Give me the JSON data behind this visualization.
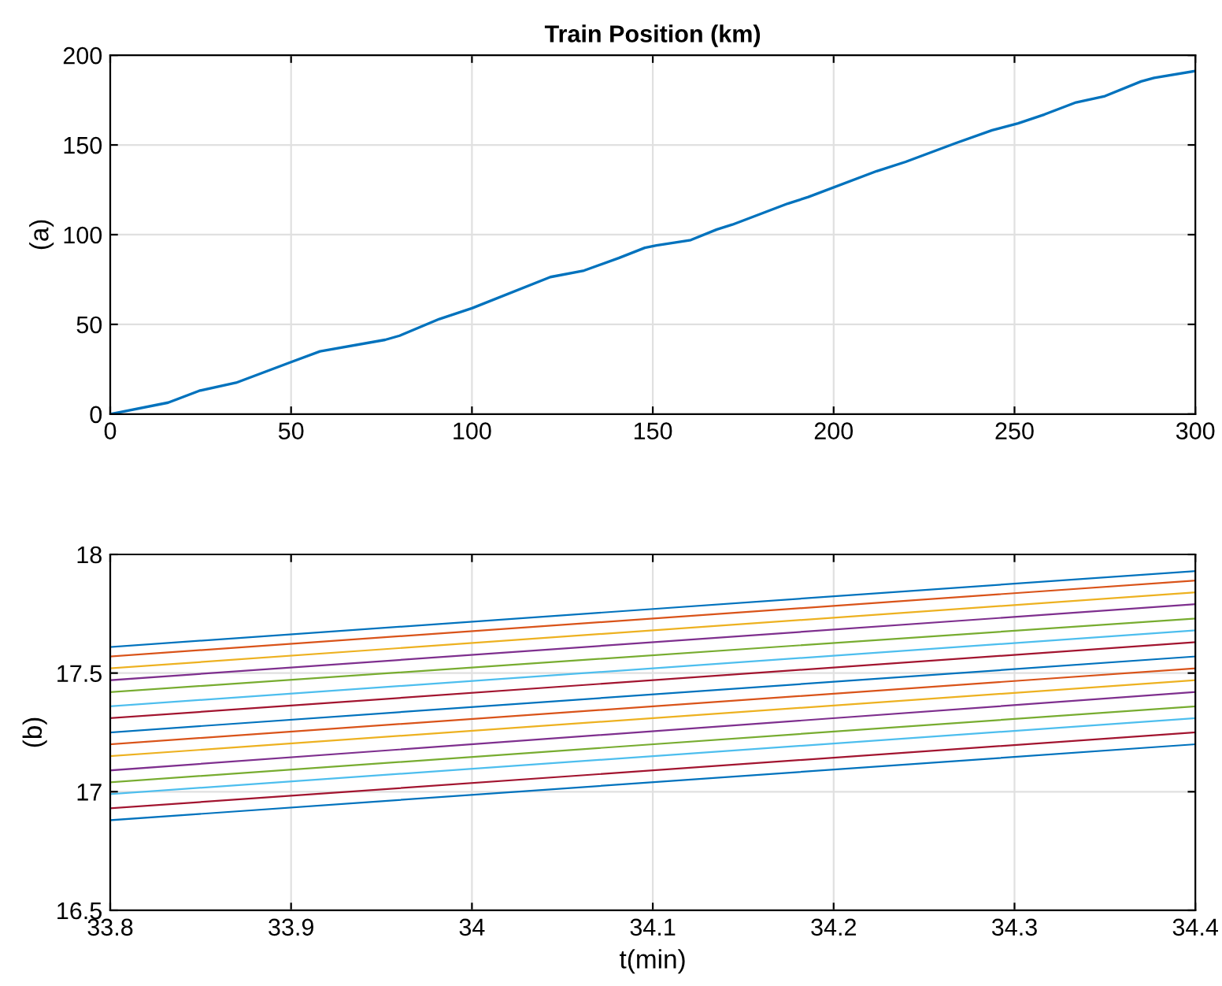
{
  "chart_data": [
    {
      "type": "line",
      "title": "Train Position (km)",
      "ylabel": "(a)",
      "xlim": [
        0,
        300
      ],
      "ylim": [
        0,
        200
      ],
      "xticks": [
        0,
        50,
        100,
        150,
        200,
        250,
        300
      ],
      "yticks": [
        0,
        50,
        100,
        150,
        200
      ],
      "grid": true,
      "series": [
        {
          "color": "#0072bd",
          "x": [
            0,
            16,
            24.6,
            34.8,
            50,
            58,
            76,
            80,
            91,
            100,
            121.7,
            131,
            140.6,
            147.8,
            151,
            160.5,
            167.7,
            172,
            187.3,
            193,
            211.9,
            219.9,
            233.6,
            243.8,
            251,
            258.3,
            267,
            275,
            285,
            288.6,
            300
          ],
          "values": [
            0,
            6.4,
            13,
            17.5,
            29,
            35,
            41.4,
            43.7,
            53,
            59,
            76.4,
            80,
            87,
            92.7,
            94,
            97,
            102.9,
            105.6,
            117.3,
            121,
            135.4,
            140.6,
            150.9,
            158.2,
            162,
            167,
            173.7,
            177.2,
            185.4,
            187.4,
            191.2
          ]
        }
      ]
    },
    {
      "type": "line",
      "ylabel": "(b)",
      "xlabel": "t(min)",
      "xlim": [
        33.8,
        34.4
      ],
      "ylim": [
        16.5,
        18
      ],
      "xticks": [
        33.8,
        33.9,
        34,
        34.1,
        34.2,
        34.3,
        34.4
      ],
      "yticks": [
        16.5,
        17,
        17.5,
        18
      ],
      "grid": true,
      "x": [
        33.8,
        34.4
      ],
      "series": [
        {
          "color": "#0072bd",
          "values": [
            17.61,
            17.93
          ]
        },
        {
          "color": "#d95319",
          "values": [
            17.57,
            17.89
          ]
        },
        {
          "color": "#edb120",
          "values": [
            17.52,
            17.84
          ]
        },
        {
          "color": "#7e2f8e",
          "values": [
            17.47,
            17.79
          ]
        },
        {
          "color": "#77ac30",
          "values": [
            17.42,
            17.73
          ]
        },
        {
          "color": "#4dbeee",
          "values": [
            17.36,
            17.68
          ]
        },
        {
          "color": "#a2142f",
          "values": [
            17.31,
            17.63
          ]
        },
        {
          "color": "#0072bd",
          "values": [
            17.25,
            17.57
          ]
        },
        {
          "color": "#d95319",
          "values": [
            17.2,
            17.52
          ]
        },
        {
          "color": "#edb120",
          "values": [
            17.15,
            17.47
          ]
        },
        {
          "color": "#7e2f8e",
          "values": [
            17.09,
            17.42
          ]
        },
        {
          "color": "#77ac30",
          "values": [
            17.04,
            17.36
          ]
        },
        {
          "color": "#4dbeee",
          "values": [
            16.99,
            17.31
          ]
        },
        {
          "color": "#a2142f",
          "values": [
            16.93,
            17.25
          ]
        },
        {
          "color": "#0072bd",
          "values": [
            16.88,
            17.2
          ]
        }
      ]
    }
  ]
}
